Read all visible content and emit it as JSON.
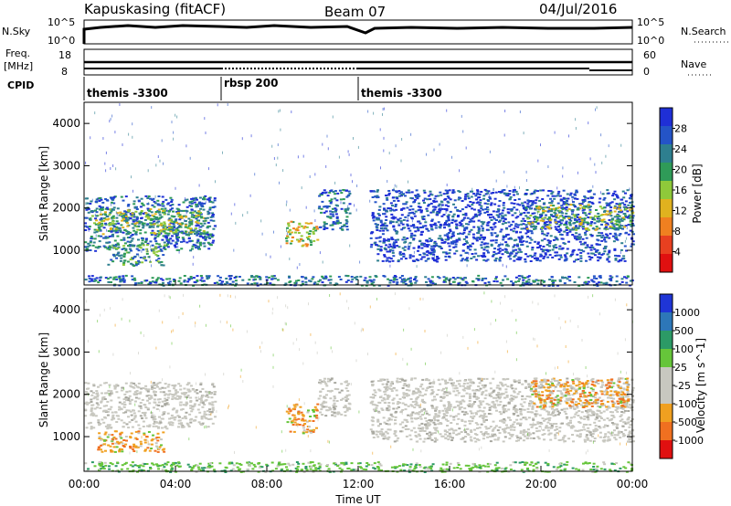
{
  "header": {
    "station": "Kapuskasing (fitACF)",
    "beam": "Beam 07",
    "date": "04/Jul/2016"
  },
  "top_panels": {
    "nsky_label": "N.Sky",
    "nsky_ticks": [
      "10^5",
      "10^0"
    ],
    "nsearch_label": "N.Search",
    "nsearch_ticks": [
      "10^5",
      "10^0"
    ],
    "freq_label_1": "Freq.",
    "freq_label_2": "[MHz]",
    "freq_ticks": [
      "18",
      "8"
    ],
    "nave_label": "Nave",
    "nave_ticks": [
      "60",
      "0"
    ],
    "cpid_label": "CPID",
    "cpid_segments": [
      {
        "name": "themis -3300",
        "start": 0,
        "end": 6
      },
      {
        "name": "rbsp 200",
        "start": 6,
        "end": 12
      },
      {
        "name": "themis -3300",
        "start": 12,
        "end": 24
      }
    ]
  },
  "chart_data": [
    {
      "type": "heatmap",
      "name": "power",
      "ylabel": "Slant Range [km]",
      "yticks": [
        "4000",
        "3000",
        "2000",
        "1000"
      ],
      "ylim": [
        180,
        4500
      ],
      "xlim": [
        0,
        24
      ],
      "colorbar": {
        "label": "Power [dB]",
        "ticks": [
          "28",
          "24",
          "20",
          "16",
          "12",
          "8",
          "4"
        ],
        "colors": [
          "#1f2fd6",
          "#2454c7",
          "#2e7f8f",
          "#2f9b58",
          "#8fc93a",
          "#e0b21f",
          "#f08020",
          "#e84020",
          "#e01010"
        ]
      },
      "echo_regions": [
        {
          "t0": 0.0,
          "t1": 5.7,
          "r0": 1000,
          "r1": 2300,
          "level": 2
        },
        {
          "t0": 0.3,
          "t1": 5.4,
          "r0": 1400,
          "r1": 2000,
          "level": 4
        },
        {
          "t0": 1.0,
          "t1": 3.5,
          "r0": 650,
          "r1": 1150,
          "level": 3
        },
        {
          "t0": 8.8,
          "t1": 10.2,
          "r0": 1100,
          "r1": 1700,
          "level": 5
        },
        {
          "t0": 10.2,
          "t1": 11.6,
          "r0": 1500,
          "r1": 2450,
          "level": 2
        },
        {
          "t0": 12.5,
          "t1": 24.0,
          "r0": 1100,
          "r1": 2450,
          "level": 1
        },
        {
          "t0": 19.3,
          "t1": 24.0,
          "r0": 1500,
          "r1": 2100,
          "level": 4
        },
        {
          "t0": 12.8,
          "t1": 23.7,
          "r0": 750,
          "r1": 1100,
          "level": 1
        },
        {
          "t0": 0.0,
          "t1": 24.0,
          "r0": 180,
          "r1": 420,
          "level": 2
        }
      ]
    },
    {
      "type": "heatmap",
      "name": "velocity",
      "ylabel": "Slant Range [km]",
      "xlabel": "Time UT",
      "xticks": [
        "00:00",
        "04:00",
        "08:00",
        "12:00",
        "16:00",
        "20:00",
        "00:00"
      ],
      "yticks": [
        "4000",
        "3000",
        "2000",
        "1000"
      ],
      "ylim": [
        180,
        4500
      ],
      "xlim": [
        0,
        24
      ],
      "colorbar": {
        "label": "Velocity [m s^-1]",
        "ticks": [
          "1000",
          "500",
          "100",
          "25",
          "-25",
          "-100",
          "-500",
          "-1000"
        ],
        "colors": [
          "#1f35d6",
          "#2d77b8",
          "#2c9a66",
          "#66c53a",
          "#c8c8c0",
          "#c8c8c0",
          "#f0a020",
          "#f07020",
          "#e01010"
        ]
      },
      "echo_regions": [
        {
          "t0": 0.0,
          "t1": 5.7,
          "r0": 1200,
          "r1": 2300,
          "vel": 0
        },
        {
          "t0": 0.5,
          "t1": 3.5,
          "r0": 650,
          "r1": 1150,
          "vel": -200
        },
        {
          "t0": 8.8,
          "t1": 10.2,
          "r0": 1100,
          "r1": 1800,
          "vel": -300
        },
        {
          "t0": 10.2,
          "t1": 11.6,
          "r0": 1500,
          "r1": 2400,
          "vel": 0
        },
        {
          "t0": 12.5,
          "t1": 24.0,
          "r0": 900,
          "r1": 2400,
          "vel": 0
        },
        {
          "t0": 19.5,
          "t1": 23.8,
          "r0": 1700,
          "r1": 2400,
          "vel": -300
        },
        {
          "t0": 0.0,
          "t1": 24.0,
          "r0": 180,
          "r1": 420,
          "vel": 120
        }
      ]
    }
  ]
}
